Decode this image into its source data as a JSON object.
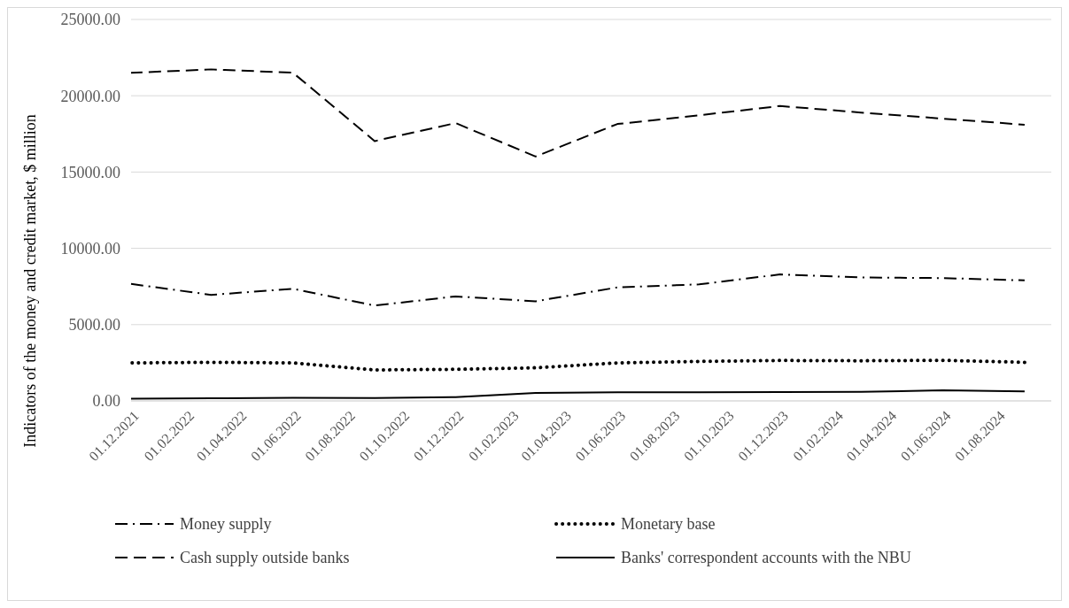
{
  "chart_data": {
    "type": "line",
    "ylabel": "Indicators of the money and credit market, $ million",
    "x": [
      "2021-12-01",
      "2022-03-01",
      "2022-06-01",
      "2022-09-01",
      "2022-12-01",
      "2023-03-01",
      "2023-06-01",
      "2023-09-01",
      "2023-12-01",
      "2024-03-01",
      "2024-06-01",
      "2024-09-01"
    ],
    "series": [
      {
        "name": "Money supply",
        "color": "#000000",
        "line_style": "dashdot",
        "values": [
          7670,
          6950,
          7350,
          6250,
          6850,
          6530,
          7440,
          7640,
          8290,
          8090,
          8050,
          7900
        ]
      },
      {
        "name": "Monetary base",
        "color": "#000000",
        "line_style": "dotted",
        "values": [
          2490,
          2530,
          2490,
          2030,
          2070,
          2170,
          2490,
          2590,
          2650,
          2630,
          2660,
          2530
        ]
      },
      {
        "name": "Cash supply outside banks",
        "color": "#000000",
        "line_style": "dashed",
        "values": [
          21500,
          21730,
          21510,
          17030,
          18210,
          16020,
          18150,
          18720,
          19330,
          18900,
          18500,
          18100
        ]
      },
      {
        "name": "Banks' correspondent accounts with the NBU",
        "color": "#000000",
        "line_style": "solid",
        "values": [
          150,
          170,
          200,
          190,
          250,
          520,
          560,
          560,
          580,
          590,
          700,
          620
        ]
      }
    ],
    "xlim": [
      "2021-12-01",
      "2024-10-01"
    ],
    "xticks": [
      {
        "value": "2021-12-01",
        "label": "01.12.2021"
      },
      {
        "value": "2022-02-01",
        "label": "01.02.2022"
      },
      {
        "value": "2022-04-01",
        "label": "01.04.2022"
      },
      {
        "value": "2022-06-01",
        "label": "01.06.2022"
      },
      {
        "value": "2022-08-01",
        "label": "01.08.2022"
      },
      {
        "value": "2022-10-01",
        "label": "01.10.2022"
      },
      {
        "value": "2022-12-01",
        "label": "01.12.2022"
      },
      {
        "value": "2023-02-01",
        "label": "01.02.2023"
      },
      {
        "value": "2023-04-01",
        "label": "01.04.2023"
      },
      {
        "value": "2023-06-01",
        "label": "01.06.2023"
      },
      {
        "value": "2023-08-01",
        "label": "01.08.2023"
      },
      {
        "value": "2023-10-01",
        "label": "01.10.2023"
      },
      {
        "value": "2023-12-01",
        "label": "01.12.2023"
      },
      {
        "value": "2024-02-01",
        "label": "01.02.2024"
      },
      {
        "value": "2024-04-01",
        "label": "01.04.2024"
      },
      {
        "value": "2024-06-01",
        "label": "01.06.2024"
      },
      {
        "value": "2024-08-01",
        "label": "01.08.2024"
      }
    ],
    "ylim": [
      0,
      25000
    ],
    "yticks": [
      {
        "value": 0,
        "label": "0.00"
      },
      {
        "value": 5000,
        "label": "5000.00"
      },
      {
        "value": 10000,
        "label": "10000.00"
      },
      {
        "value": 15000,
        "label": "15000.00"
      },
      {
        "value": 20000,
        "label": "20000.00"
      },
      {
        "value": 25000,
        "label": "25000.00"
      }
    ],
    "grid": "y",
    "legend": "bottom"
  }
}
